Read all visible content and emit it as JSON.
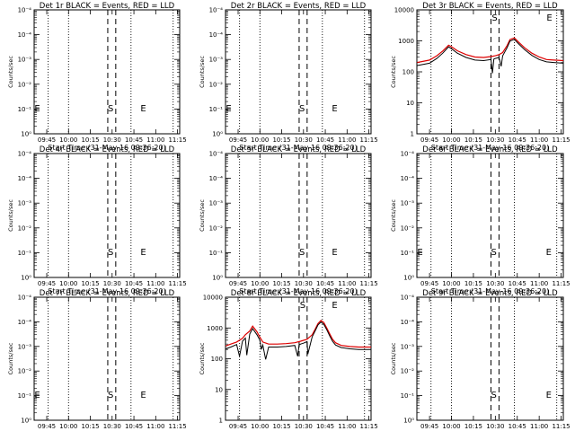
{
  "colors": {
    "events": "#000000",
    "lld": "#dd0000",
    "background": "#ffffff"
  },
  "x_tick_labels": [
    "09:45",
    "10:00",
    "10:15",
    "10:30",
    "10:45",
    "11:00",
    "11:15"
  ],
  "x_tick_minutes": [
    45,
    60,
    75,
    90,
    105,
    120,
    135
  ],
  "xlim_minutes": [
    36.33,
    136.5
  ],
  "x_axis_label": "Start Time (31-May-16 09:36:20)",
  "y_axis_label": "Counts/sec",
  "dotted_lines_minutes": [
    46,
    60,
    103,
    132
  ],
  "dashed_lines_minutes": [
    87,
    92.5
  ],
  "log_tick_labels": [
    "1",
    "10",
    "100",
    "1000",
    "10000"
  ],
  "chart_data": [
    {
      "type": "line",
      "title": "Det 1r BLACK = Events, RED = LLD",
      "ylim": [
        1,
        10000
      ],
      "y_scale": "log",
      "yaxis_style": "empty",
      "flat_tick_labels": [
        "10⁰",
        "10⁻¹",
        "10⁻²",
        "10⁻³",
        "10⁻⁴",
        "10⁻⁴"
      ],
      "markers": [
        {
          "text": "E",
          "x": 38.5
        },
        {
          "text": "S",
          "x": 89
        },
        {
          "text": "E",
          "x": 111.5
        }
      ],
      "series": []
    },
    {
      "type": "line",
      "title": "Det 2r BLACK = Events, RED = LLD",
      "ylim": [
        1,
        10000
      ],
      "y_scale": "log",
      "yaxis_style": "empty",
      "flat_tick_labels": [
        "10⁰",
        "10⁻¹",
        "10⁻²",
        "10⁻³",
        "10⁻⁴",
        "10⁻⁴"
      ],
      "markers": [
        {
          "text": "E",
          "x": 38.5
        },
        {
          "text": "S",
          "x": 89
        },
        {
          "text": "E",
          "x": 111.5
        }
      ],
      "series": []
    },
    {
      "type": "line",
      "title": "Det 3r BLACK = Events, RED = LLD",
      "ylim": [
        1,
        10000
      ],
      "y_scale": "log",
      "yaxis_style": "log",
      "markers": [
        {
          "text": "S",
          "x": 89.5
        },
        {
          "text": "E",
          "x": 127
        }
      ],
      "series": [
        {
          "color": "#dd0000",
          "x": [
            36.5,
            45,
            50,
            54,
            58,
            60,
            64,
            70,
            76,
            82,
            87,
            90,
            92.5,
            95,
            98,
            100,
            103,
            106,
            110,
            115,
            120,
            125,
            130,
            136.5
          ],
          "y": [
            200,
            240,
            330,
            470,
            720,
            650,
            480,
            360,
            300,
            290,
            310,
            330,
            360,
            420,
            700,
            1100,
            1250,
            900,
            600,
            400,
            300,
            250,
            240,
            230
          ]
        },
        {
          "color": "#000000",
          "x": [
            36.5,
            45,
            50,
            54,
            58,
            60,
            64,
            70,
            76,
            82,
            87,
            88,
            89,
            90,
            92.5,
            94,
            95,
            98,
            100,
            103,
            106,
            110,
            115,
            120,
            125,
            130,
            136.5
          ],
          "y": [
            160,
            190,
            270,
            400,
            640,
            560,
            400,
            290,
            240,
            230,
            250,
            90,
            260,
            270,
            290,
            150,
            330,
            600,
            980,
            1120,
            790,
            520,
            340,
            250,
            210,
            200,
            190
          ]
        }
      ]
    },
    {
      "type": "line",
      "title": "Det 4r BLACK = Events, RED = LLD",
      "ylim": [
        1,
        10000
      ],
      "y_scale": "log",
      "yaxis_style": "empty",
      "flat_tick_labels": [
        "10⁰",
        "10⁻¹",
        "10⁻²",
        "10⁻³",
        "10⁻⁴",
        "10⁻⁴"
      ],
      "markers": [
        {
          "text": "S",
          "x": 89
        },
        {
          "text": "E",
          "x": 111.5
        }
      ],
      "series": []
    },
    {
      "type": "line",
      "title": "Det 5r BLACK = Events, RED = LLD",
      "ylim": [
        1,
        10000
      ],
      "y_scale": "log",
      "yaxis_style": "empty",
      "flat_tick_labels": [
        "10⁰",
        "10⁻¹",
        "10⁻²",
        "10⁻³",
        "10⁻⁴",
        "10⁻⁴"
      ],
      "markers": [
        {
          "text": "S",
          "x": 89
        },
        {
          "text": "E",
          "x": 111.5
        }
      ],
      "series": []
    },
    {
      "type": "line",
      "title": "Det 6r BLACK = Events, RED = LLD",
      "ylim": [
        1,
        10000
      ],
      "y_scale": "log",
      "yaxis_style": "empty",
      "flat_tick_labels": [
        "10⁰",
        "10⁻¹",
        "10⁻²",
        "10⁻³",
        "10⁻⁴",
        "10⁻⁴"
      ],
      "markers": [
        {
          "text": "E",
          "x": 38.5
        },
        {
          "text": "S",
          "x": 89
        },
        {
          "text": "E",
          "x": 126.5
        }
      ],
      "series": []
    },
    {
      "type": "line",
      "title": "Det 7r BLACK = Events, RED = LLD",
      "ylim": [
        1,
        10000
      ],
      "y_scale": "log",
      "yaxis_style": "empty",
      "flat_tick_labels": [
        "10⁰",
        "10⁻¹",
        "10⁻²",
        "10⁻³",
        "10⁻⁴",
        "10⁻⁴"
      ],
      "markers": [
        {
          "text": "E",
          "x": 38.5
        },
        {
          "text": "S",
          "x": 89
        },
        {
          "text": "E",
          "x": 111.5
        }
      ],
      "series": []
    },
    {
      "type": "line",
      "title": "Det 8r BLACK = Events, RED = LLD",
      "ylim": [
        1,
        10000
      ],
      "y_scale": "log",
      "yaxis_style": "log",
      "markers": [
        {
          "text": "S",
          "x": 89.5
        },
        {
          "text": "E",
          "x": 111.5
        }
      ],
      "series": [
        {
          "color": "#dd0000",
          "x": [
            36.5,
            40,
            44,
            48,
            50,
            53,
            55,
            58,
            60,
            62,
            66,
            72,
            78,
            84,
            88,
            92.5,
            96,
            98,
            100,
            102,
            104,
            106,
            108,
            110,
            112,
            116,
            122,
            128,
            136.5
          ],
          "y": [
            260,
            300,
            350,
            460,
            600,
            800,
            1150,
            750,
            500,
            350,
            300,
            300,
            310,
            330,
            370,
            430,
            600,
            900,
            1400,
            1750,
            1500,
            1000,
            650,
            430,
            330,
            270,
            250,
            240,
            240
          ]
        },
        {
          "color": "#000000",
          "x": [
            36.5,
            40,
            44,
            46,
            48,
            50,
            51,
            53,
            55,
            58,
            60,
            61,
            62,
            64,
            66,
            72,
            78,
            84,
            86,
            87,
            88,
            90,
            92.5,
            93,
            96,
            98,
            100,
            102,
            104,
            106,
            108,
            110,
            112,
            116,
            122,
            128,
            136.5
          ],
          "y": [
            210,
            240,
            290,
            120,
            370,
            470,
            130,
            640,
            950,
            600,
            400,
            200,
            280,
            95,
            240,
            240,
            250,
            270,
            120,
            280,
            300,
            320,
            360,
            140,
            520,
            800,
            1260,
            1550,
            1320,
            880,
            560,
            370,
            280,
            230,
            210,
            200,
            200
          ]
        }
      ]
    },
    {
      "type": "line",
      "title": "Det 9r BLACK = Events, RED = LLD",
      "ylim": [
        1,
        10000
      ],
      "y_scale": "log",
      "yaxis_style": "empty",
      "flat_tick_labels": [
        "10⁰",
        "10⁻¹",
        "10⁻²",
        "10⁻³",
        "10⁻⁴",
        "10⁻⁴"
      ],
      "markers": [
        {
          "text": "S",
          "x": 89
        },
        {
          "text": "E",
          "x": 126.5
        }
      ],
      "series": []
    }
  ]
}
